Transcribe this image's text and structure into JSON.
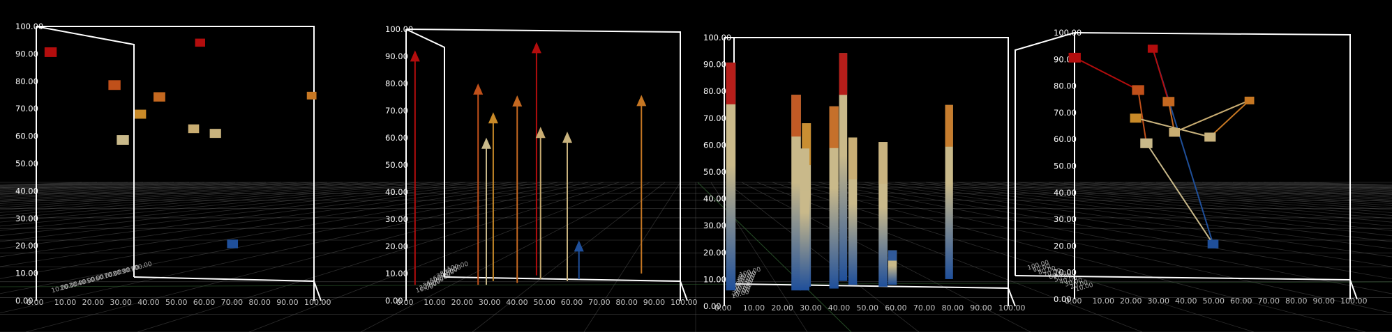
{
  "colors": {
    "background": "#000000",
    "grid": "#5a5a5a",
    "box": "#ffffff",
    "tick_text": "#d8d8d8",
    "y_text": "#ffffff",
    "low": "#1f4f9a",
    "mid": "#c9b98a",
    "high": "#b30d0d"
  },
  "chart_data": [
    {
      "type": "scatter",
      "panel": "3d-scatter",
      "xlim": [
        0,
        100
      ],
      "ylim": [
        0,
        100
      ],
      "yticks": [
        "0.00",
        "10.00",
        "20.00",
        "30.00",
        "40.00",
        "50.00",
        "60.00",
        "70.00",
        "80.00",
        "90.00",
        "100.00"
      ],
      "xticks": [
        "0.00",
        "10.00",
        "20.00",
        "30.00",
        "40.00",
        "50.00",
        "60.00",
        "70.00",
        "80.00",
        "90.00",
        "100.00"
      ],
      "depth_ticks": [
        "10.00",
        "20.00",
        "30.00",
        "40.00",
        "50.00",
        "60.00",
        "70.00",
        "80.00",
        "90.00",
        "100.00"
      ],
      "points": [
        {
          "x": 2,
          "z": 10,
          "y": 90
        },
        {
          "x": 40,
          "z": 60,
          "y": 90
        },
        {
          "x": 25,
          "z": 10,
          "y": 78
        },
        {
          "x": 28,
          "z": 30,
          "y": 66
        },
        {
          "x": 38,
          "z": 20,
          "y": 73
        },
        {
          "x": 77,
          "z": 70,
          "y": 70
        },
        {
          "x": 28,
          "z": 10,
          "y": 58
        },
        {
          "x": 44,
          "z": 40,
          "y": 60
        },
        {
          "x": 55,
          "z": 30,
          "y": 59
        },
        {
          "x": 58,
          "z": 40,
          "y": 18
        }
      ]
    },
    {
      "type": "scatter",
      "panel": "3d-stems",
      "xlim": [
        0,
        100
      ],
      "ylim": [
        0,
        100
      ],
      "yticks": [
        "0.00",
        "10.00",
        "20.00",
        "30.00",
        "40.00",
        "50.00",
        "60.00",
        "70.00",
        "80.00",
        "90.00",
        "100.00"
      ],
      "xticks": [
        "0.00",
        "10.00",
        "20.00",
        "30.00",
        "40.00",
        "50.00",
        "60.00",
        "70.00",
        "80.00",
        "90.00",
        "100.00"
      ],
      "depth_ticks": [
        "10.00",
        "20.00",
        "30.00",
        "40.00",
        "50.00",
        "60.00",
        "70.00",
        "80.00",
        "90.00",
        "100.00"
      ],
      "points": [
        {
          "x": 2,
          "z": 10,
          "y": 90
        },
        {
          "x": 40,
          "z": 60,
          "y": 90
        },
        {
          "x": 25,
          "z": 10,
          "y": 78
        },
        {
          "x": 28,
          "z": 30,
          "y": 66
        },
        {
          "x": 38,
          "z": 20,
          "y": 73
        },
        {
          "x": 77,
          "z": 70,
          "y": 70
        },
        {
          "x": 28,
          "z": 10,
          "y": 58
        },
        {
          "x": 44,
          "z": 40,
          "y": 60
        },
        {
          "x": 55,
          "z": 30,
          "y": 59
        },
        {
          "x": 58,
          "z": 40,
          "y": 18
        }
      ]
    },
    {
      "type": "bar",
      "panel": "3d-bars",
      "xlim": [
        0,
        100
      ],
      "ylim": [
        0,
        100
      ],
      "yticks": [
        "0.00",
        "10.00",
        "20.00",
        "30.00",
        "40.00",
        "50.00",
        "60.00",
        "70.00",
        "80.00",
        "90.00",
        "100.00"
      ],
      "xticks": [
        "0.00",
        "10.00",
        "20.00",
        "30.00",
        "40.00",
        "50.00",
        "60.00",
        "70.00",
        "80.00",
        "90.00",
        "100.00"
      ],
      "depth_ticks": [
        "10.00",
        "20.00",
        "30.00",
        "40.00",
        "50.00",
        "60.00",
        "70.00",
        "80.00",
        "90.00",
        "100.00"
      ],
      "points": [
        {
          "x": 2,
          "z": 10,
          "y": 90
        },
        {
          "x": 40,
          "z": 60,
          "y": 90
        },
        {
          "x": 25,
          "z": 10,
          "y": 78
        },
        {
          "x": 28,
          "z": 30,
          "y": 66
        },
        {
          "x": 38,
          "z": 20,
          "y": 73
        },
        {
          "x": 77,
          "z": 70,
          "y": 70
        },
        {
          "x": 28,
          "z": 10,
          "y": 58
        },
        {
          "x": 44,
          "z": 40,
          "y": 60
        },
        {
          "x": 55,
          "z": 30,
          "y": 59
        },
        {
          "x": 58,
          "z": 40,
          "y": 18
        }
      ]
    },
    {
      "type": "line",
      "panel": "3d-lines",
      "xlim": [
        0,
        100
      ],
      "ylim": [
        0,
        100
      ],
      "yticks": [
        "0.00",
        "10.00",
        "20.00",
        "30.00",
        "40.00",
        "50.00",
        "60.00",
        "70.00",
        "80.00",
        "90.00",
        "100.00"
      ],
      "xticks": [
        "0.00",
        "10.00",
        "20.00",
        "30.00",
        "40.00",
        "50.00",
        "60.00",
        "70.00",
        "80.00",
        "90.00",
        "100.00"
      ],
      "depth_ticks": [
        "10.00",
        "20.00",
        "30.00",
        "40.00",
        "50.00",
        "60.00",
        "70.00",
        "80.00",
        "90.00",
        "100.00"
      ],
      "points": [
        {
          "x": 2,
          "z": 10,
          "y": 90
        },
        {
          "x": 40,
          "z": 60,
          "y": 90
        },
        {
          "x": 25,
          "z": 10,
          "y": 78
        },
        {
          "x": 28,
          "z": 30,
          "y": 66
        },
        {
          "x": 38,
          "z": 20,
          "y": 73
        },
        {
          "x": 77,
          "z": 70,
          "y": 70
        },
        {
          "x": 28,
          "z": 10,
          "y": 58
        },
        {
          "x": 44,
          "z": 40,
          "y": 60
        },
        {
          "x": 55,
          "z": 30,
          "y": 59
        },
        {
          "x": 58,
          "z": 40,
          "y": 18
        }
      ]
    }
  ]
}
